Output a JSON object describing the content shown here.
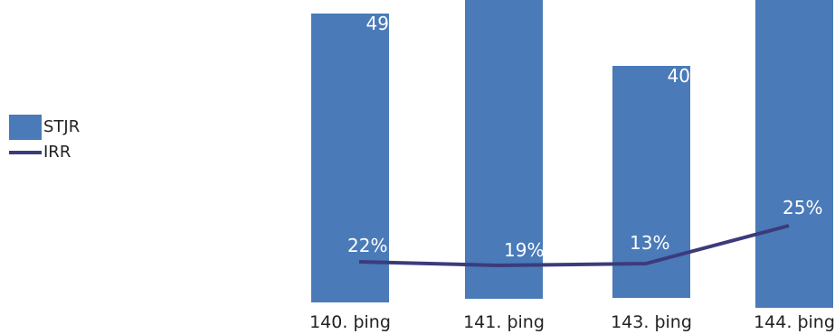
{
  "chart_data": {
    "type": "bar",
    "categories": [
      "140. þing",
      "141. þing",
      "143. þing",
      "144. þing"
    ],
    "series": [
      {
        "name": "STJR",
        "type": "bar",
        "values": [
          49,
          null,
          40,
          null
        ],
        "labels": [
          "49",
          "",
          "40",
          ""
        ]
      },
      {
        "name": "IRR",
        "type": "line",
        "values": [
          22,
          19,
          13,
          25
        ],
        "labels": [
          "22%",
          "19%",
          "13%",
          "25%"
        ]
      }
    ],
    "title": "",
    "xlabel": "",
    "ylabel": "",
    "legend": "left",
    "grid": false,
    "colors": {
      "bar": "#4a7ab8",
      "line": "#3b3b7c"
    }
  }
}
